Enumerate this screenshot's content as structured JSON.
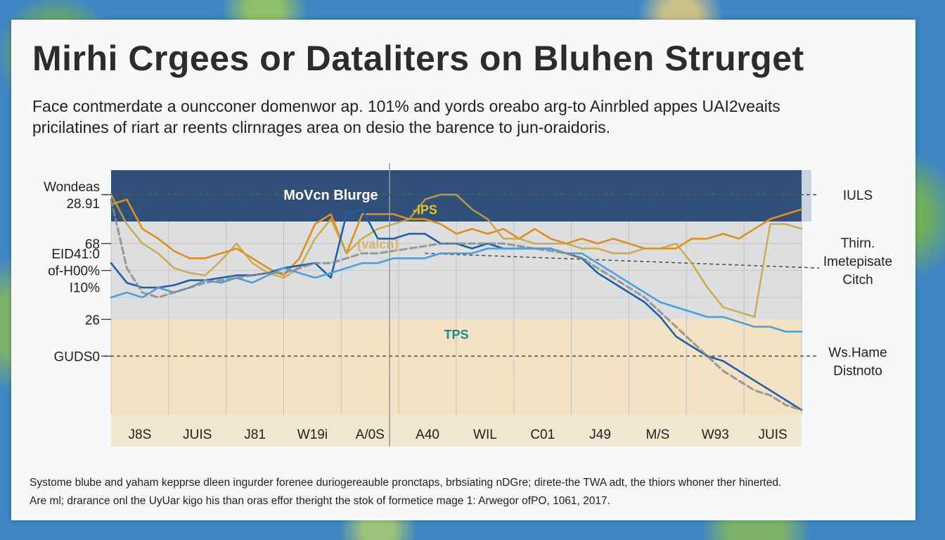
{
  "title": "Mirhi Crgees or Dataliters on Bluhen Strurget",
  "subtitle": {
    "line1": "Face contmerdate a ouncconer domenwor ap. 101% and yords oreabo arg-to Ainrbled appes UAI2veaits",
    "line2": "pricilatines of riart ar reents clirnrages area on desio the barence to jun-oraidoris."
  },
  "footer": {
    "line1": "Systome blube and yaham kepprse dleen ingurder forenee duriogereauble pronctaps, brbsiating nDGre; direte-the TWA adt, the thiors whoner ther hinerted.",
    "line2": "Are ml; drarance onl the UyUar kigo his than oras effor theright the stok of formetice mage 1: Arwegor ofPO, 1061, 2017."
  },
  "colors": {
    "band_top": "#2f5079",
    "band_mid": "#dddee0",
    "band_low": "#f3e2c3",
    "orange": "#e08f1a",
    "gold": "#c9a43c",
    "darkblue": "#1f5fa8",
    "lightblue": "#4f9fda",
    "gray": "#8a8a8a"
  },
  "chart_data": {
    "type": "line",
    "title": "MoVcn Blurge",
    "categories": [
      "J8S",
      "JUIS",
      "J81",
      "W19i",
      "A/0S",
      "A40",
      "WIL",
      "C01",
      "J49",
      "M/S",
      "W93",
      "JUIS"
    ],
    "x": [
      0,
      1,
      2,
      3,
      4,
      5,
      6,
      7,
      8,
      9,
      10,
      11,
      12,
      13,
      14,
      15,
      16,
      17,
      18,
      19,
      20,
      21,
      22,
      23,
      24,
      25,
      26,
      27,
      28,
      29,
      30,
      31,
      32,
      33,
      34,
      35,
      36,
      37,
      38,
      39,
      40,
      41,
      42,
      43,
      44
    ],
    "ylim": [
      0,
      100
    ],
    "y_tick_labels": [
      {
        "value": 90,
        "lines": [
          "Wondeas",
          "28.91"
        ]
      },
      {
        "value": 70,
        "lines": [
          "68"
        ]
      },
      {
        "value": 59,
        "lines": [
          "ЕID41:0",
          "of-H00%",
          "I10%"
        ]
      },
      {
        "value": 39,
        "lines": [
          "26"
        ]
      },
      {
        "value": 24,
        "lines": [
          "GUDS0"
        ]
      }
    ],
    "right_labels": [
      {
        "value": 90,
        "lines": [
          "IULS"
        ]
      },
      {
        "value": 63,
        "lines": [
          "Thirn.",
          "Imetepisate",
          "Citch"
        ]
      },
      {
        "value": 22,
        "lines": [
          "Ws.Hame",
          "Distnoto"
        ]
      }
    ],
    "bands": [
      {
        "name": "top",
        "from": 79,
        "to": 100
      },
      {
        "name": "mid",
        "from": 39,
        "to": 79
      },
      {
        "name": "low",
        "from": 0,
        "to": 39
      }
    ],
    "annotations": [
      {
        "text": "MoVcn Blurge",
        "x": 14,
        "y": 90,
        "color": "#ffffff"
      },
      {
        "text": "-IPS",
        "x": 20,
        "y": 84,
        "color": "#e8c21f"
      },
      {
        "text": "[valcn]",
        "x": 17,
        "y": 70,
        "color": "#d9b36a"
      },
      {
        "text": "TPS",
        "x": 22,
        "y": 33,
        "color": "#1e8a96"
      }
    ],
    "reference_lines": [
      {
        "name": "ref-upper",
        "y": [
          90,
          90
        ],
        "style": "dashed"
      },
      {
        "name": "ref-middle",
        "y": [
          66,
          60
        ],
        "x_from": 20,
        "style": "dashed"
      },
      {
        "name": "ref-lower",
        "y": [
          24,
          24
        ],
        "style": "dashed"
      }
    ],
    "series": [
      {
        "name": "Orange",
        "color": "#e08f1a",
        "values": [
          86,
          88,
          76,
          72,
          67,
          64,
          64,
          66,
          68,
          64,
          60,
          57,
          64,
          78,
          82,
          66,
          82,
          82,
          82,
          80,
          80,
          78,
          74,
          76,
          74,
          76,
          72,
          76,
          72,
          70,
          72,
          70,
          72,
          70,
          68,
          68,
          68,
          72,
          72,
          74,
          72,
          76,
          80,
          82,
          84
        ]
      },
      {
        "name": "Gold",
        "color": "#c9a43c",
        "values": [
          90,
          78,
          70,
          66,
          60,
          58,
          57,
          63,
          70,
          62,
          58,
          56,
          60,
          72,
          80,
          66,
          72,
          76,
          78,
          80,
          88,
          90,
          90,
          84,
          80,
          72,
          72,
          70,
          70,
          70,
          68,
          68,
          66,
          66,
          68,
          68,
          70,
          62,
          52,
          44,
          42,
          40,
          78,
          78,
          76
        ]
      },
      {
        "name": "DarkBlue",
        "color": "#1f5fa8",
        "values": [
          62,
          54,
          52,
          52,
          53,
          55,
          55,
          56,
          57,
          57,
          58,
          60,
          61,
          62,
          56,
          82,
          84,
          72,
          72,
          74,
          74,
          70,
          70,
          68,
          70,
          68,
          68,
          68,
          68,
          66,
          64,
          58,
          54,
          50,
          46,
          40,
          32,
          28,
          24,
          22,
          18,
          14,
          10,
          6,
          2
        ]
      },
      {
        "name": "LightBlue",
        "color": "#4f9fda",
        "values": [
          48,
          50,
          48,
          52,
          50,
          52,
          55,
          54,
          56,
          54,
          57,
          60,
          58,
          56,
          58,
          60,
          62,
          62,
          64,
          64,
          64,
          66,
          66,
          66,
          68,
          68,
          68,
          68,
          68,
          66,
          66,
          62,
          58,
          54,
          50,
          46,
          44,
          42,
          40,
          40,
          38,
          36,
          36,
          34,
          34
        ]
      },
      {
        "name": "GrayDash",
        "color": "#8a8a8a",
        "values": [
          88,
          60,
          50,
          48,
          50,
          52,
          54,
          55,
          56,
          57,
          58,
          58,
          60,
          62,
          62,
          64,
          66,
          66,
          67,
          68,
          69,
          70,
          70,
          70,
          70,
          70,
          69,
          68,
          67,
          66,
          64,
          60,
          56,
          52,
          48,
          42,
          36,
          30,
          24,
          18,
          14,
          10,
          8,
          4,
          2
        ]
      }
    ]
  }
}
